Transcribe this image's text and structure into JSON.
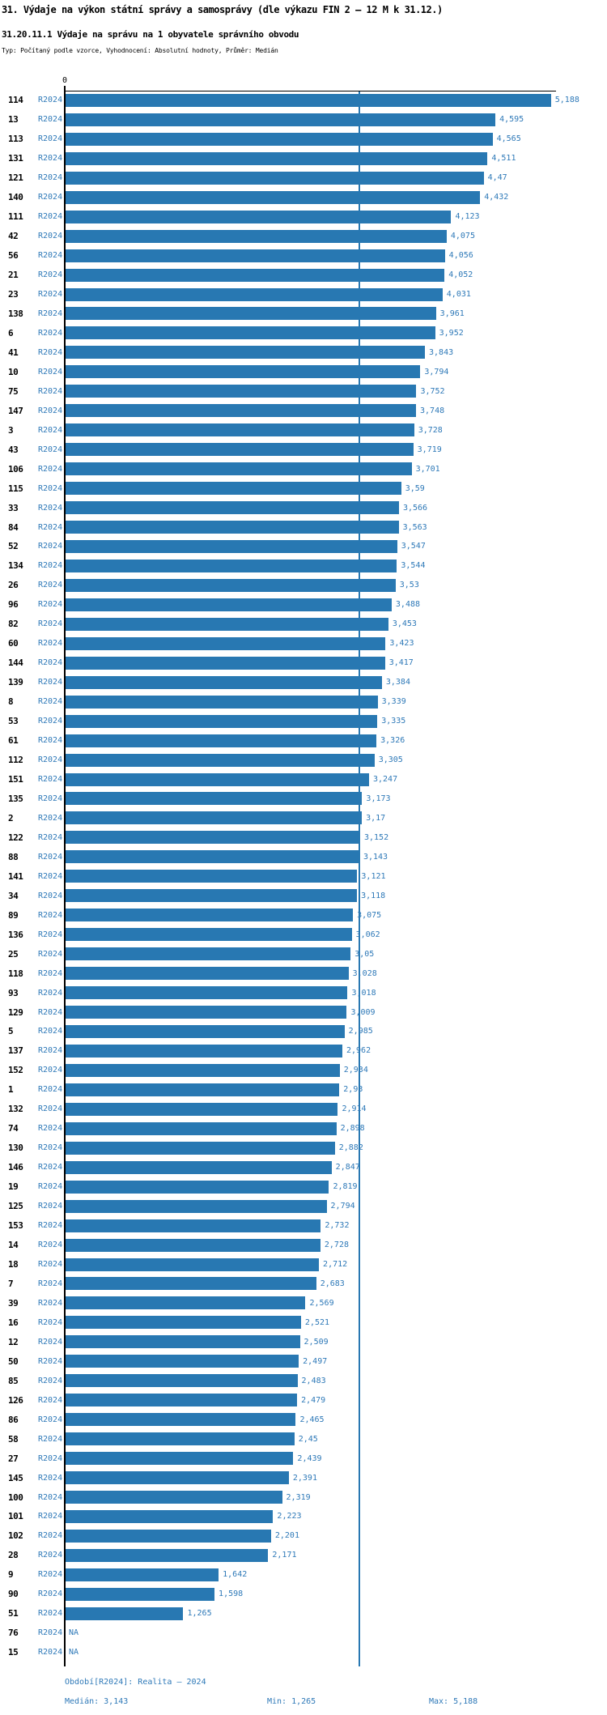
{
  "header": {
    "title": "31. Výdaje na výkon státní správy a samosprávy (dle výkazu FIN 2 – 12 M k 31.12.)",
    "subtitle": "31.20.11.1 Výdaje na správu na 1 obyvatele správního obvodu",
    "meta": "Typ: Počítaný podle vzorce, Vyhodnocení: Absolutní hodnoty, Průměr: Medián"
  },
  "colors": {
    "bar": "#2878b2",
    "accent_text": "#2e79b8",
    "axis": "#000000"
  },
  "chart_data": {
    "type": "bar",
    "orientation": "horizontal",
    "title": "31.20.11.1 Výdaje na správu na 1 obyvatele správního obvodu",
    "series_label": "R2024",
    "origin_tick_label": "0",
    "xlim": [
      0,
      5.24
    ],
    "median": 3.143,
    "grid": false,
    "categories": [
      "114",
      "13",
      "113",
      "131",
      "121",
      "140",
      "111",
      "42",
      "56",
      "21",
      "23",
      "138",
      "6",
      "41",
      "10",
      "75",
      "147",
      "3",
      "43",
      "106",
      "115",
      "33",
      "84",
      "52",
      "134",
      "26",
      "96",
      "82",
      "60",
      "144",
      "139",
      "8",
      "53",
      "61",
      "112",
      "151",
      "135",
      "2",
      "122",
      "88",
      "141",
      "34",
      "89",
      "136",
      "25",
      "118",
      "93",
      "129",
      "5",
      "137",
      "152",
      "1",
      "132",
      "74",
      "130",
      "146",
      "19",
      "125",
      "153",
      "14",
      "18",
      "7",
      "39",
      "16",
      "12",
      "50",
      "85",
      "126",
      "86",
      "58",
      "27",
      "145",
      "100",
      "101",
      "102",
      "28",
      "9",
      "90",
      "51",
      "76",
      "15"
    ],
    "values": [
      5.188,
      4.595,
      4.565,
      4.511,
      4.47,
      4.432,
      4.123,
      4.075,
      4.056,
      4.052,
      4.031,
      3.961,
      3.952,
      3.843,
      3.794,
      3.752,
      3.748,
      3.728,
      3.719,
      3.701,
      3.59,
      3.566,
      3.563,
      3.547,
      3.544,
      3.53,
      3.488,
      3.453,
      3.423,
      3.417,
      3.384,
      3.339,
      3.335,
      3.326,
      3.305,
      3.247,
      3.173,
      3.17,
      3.152,
      3.143,
      3.121,
      3.118,
      3.075,
      3.062,
      3.05,
      3.028,
      3.018,
      3.009,
      2.985,
      2.962,
      2.934,
      2.93,
      2.914,
      2.898,
      2.882,
      2.847,
      2.819,
      2.794,
      2.732,
      2.728,
      2.712,
      2.683,
      2.569,
      2.521,
      2.509,
      2.497,
      2.483,
      2.479,
      2.465,
      2.45,
      2.439,
      2.391,
      2.319,
      2.223,
      2.201,
      2.171,
      1.642,
      1.598,
      1.265,
      null,
      null
    ],
    "value_labels": [
      "5,188",
      "4,595",
      "4,565",
      "4,511",
      "4,47",
      "4,432",
      "4,123",
      "4,075",
      "4,056",
      "4,052",
      "4,031",
      "3,961",
      "3,952",
      "3,843",
      "3,794",
      "3,752",
      "3,748",
      "3,728",
      "3,719",
      "3,701",
      "3,59",
      "3,566",
      "3,563",
      "3,547",
      "3,544",
      "3,53",
      "3,488",
      "3,453",
      "3,423",
      "3,417",
      "3,384",
      "3,339",
      "3,335",
      "3,326",
      "3,305",
      "3,247",
      "3,173",
      "3,17",
      "3,152",
      "3,143",
      "3,121",
      "3,118",
      "3,075",
      "3,062",
      "3,05",
      "3,028",
      "3,018",
      "3,009",
      "2,985",
      "2,962",
      "2,934",
      "2,93",
      "2,914",
      "2,898",
      "2,882",
      "2,847",
      "2,819",
      "2,794",
      "2,732",
      "2,728",
      "2,712",
      "2,683",
      "2,569",
      "2,521",
      "2,509",
      "2,497",
      "2,483",
      "2,479",
      "2,465",
      "2,45",
      "2,439",
      "2,391",
      "2,319",
      "2,223",
      "2,201",
      "2,171",
      "1,642",
      "1,598",
      "1,265",
      "NA",
      "NA"
    ]
  },
  "footer": {
    "period": "Období[R2024]: Realita – 2024",
    "median": "Medián: 3,143",
    "min": "Min: 1,265",
    "max": "Max: 5,188"
  }
}
